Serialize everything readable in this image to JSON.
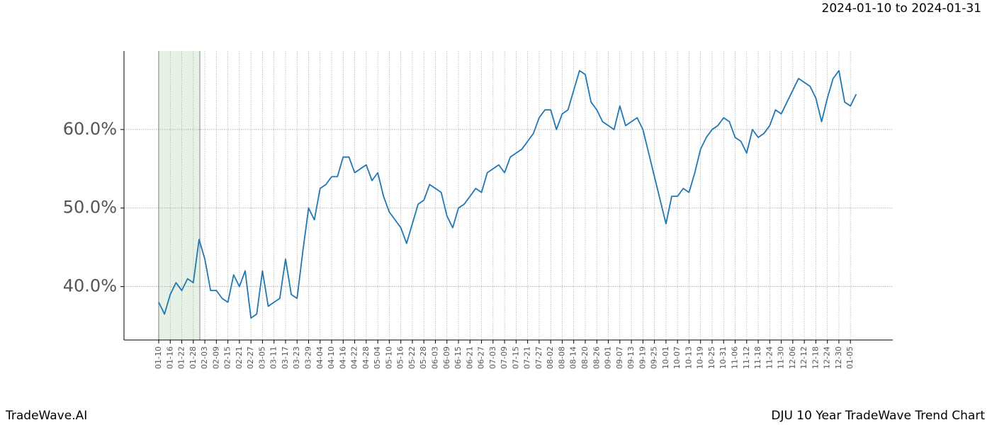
{
  "chart_data": {
    "type": "line",
    "title": "DJU 10 Year TradeWave Trend Chart",
    "subtitle": "2024-01-10 to 2024-01-31",
    "brand": "TradeWave.AI",
    "categories": [
      "01-10",
      null,
      "01-16",
      null,
      "01-22",
      null,
      "01-28",
      null,
      "02-03",
      null,
      "02-09",
      null,
      "02-15",
      null,
      "02-21",
      null,
      "02-27",
      null,
      "03-05",
      null,
      "03-11",
      null,
      "03-17",
      null,
      "03-23",
      null,
      "03-29",
      null,
      "04-04",
      null,
      "04-10",
      null,
      "04-16",
      null,
      "04-22",
      null,
      "04-28",
      null,
      "05-04",
      null,
      "05-10",
      null,
      "05-16",
      null,
      "05-22",
      null,
      "05-28",
      null,
      "06-03",
      null,
      "06-09",
      null,
      "06-15",
      null,
      "06-21",
      null,
      "06-27",
      null,
      "07-03",
      null,
      "07-09",
      null,
      "07-15",
      null,
      "07-21",
      null,
      "07-27",
      null,
      "08-02",
      null,
      "08-08",
      null,
      "08-14",
      null,
      "08-20",
      null,
      "08-26",
      null,
      "09-01",
      null,
      "09-07",
      null,
      "09-13",
      null,
      "09-19",
      null,
      "09-25",
      null,
      "10-01",
      null,
      "10-07",
      null,
      "10-13",
      null,
      "10-19",
      null,
      "10-25",
      null,
      "10-31",
      null,
      "11-06",
      null,
      "11-12",
      null,
      "11-18",
      null,
      "11-24",
      null,
      "11-30",
      null,
      "12-06",
      null,
      "12-12",
      null,
      "12-18",
      null,
      "12-24",
      null,
      "12-30",
      null,
      "01-05",
      null
    ],
    "series": [
      {
        "color": "#1f77b4",
        "values": [
          38.0,
          36.5,
          39.0,
          40.5,
          39.5,
          41.0,
          40.5,
          46.0,
          43.5,
          39.5,
          39.5,
          38.5,
          38.0,
          41.5,
          40.0,
          42.0,
          36.0,
          36.5,
          42.0,
          37.5,
          38.0,
          38.5,
          43.5,
          39.0,
          38.5,
          44.5,
          50.0,
          48.5,
          52.5,
          53.0,
          54.0,
          54.0,
          56.5,
          56.5,
          54.5,
          55.0,
          55.5,
          53.5,
          54.5,
          51.5,
          49.5,
          48.5,
          47.5,
          45.5,
          48.0,
          50.5,
          51.0,
          53.0,
          52.5,
          52.0,
          49.0,
          47.5,
          50.0,
          50.5,
          51.5,
          52.5,
          52.0,
          54.5,
          55.0,
          55.5,
          54.5,
          56.5,
          57.0,
          57.5,
          58.5,
          59.5,
          61.5,
          62.5,
          62.5,
          60.0,
          62.0,
          62.5,
          65.0,
          67.5,
          67.0,
          63.5,
          62.5,
          61.0,
          60.5,
          60.0,
          63.0,
          60.5,
          61.0,
          61.5,
          60.0,
          57.0,
          54.0,
          51.0,
          48.0,
          51.5,
          51.5,
          52.5,
          52.0,
          54.5,
          57.5,
          59.0,
          60.0,
          60.5,
          61.5,
          61.0,
          59.0,
          58.5,
          57.0,
          60.0,
          59.0,
          59.5,
          60.5,
          62.5,
          62.0,
          63.5,
          65.0,
          66.5,
          66.0,
          65.5,
          64.0,
          61.0,
          64.0,
          66.5,
          67.5,
          63.5,
          63.0,
          64.5
        ]
      }
    ],
    "ylim": [
      33.2,
      70
    ],
    "yticks": [
      {
        "value": 40,
        "label": "40.0%"
      },
      {
        "value": 50,
        "label": "50.0%"
      },
      {
        "value": 60,
        "label": "60.0%"
      }
    ],
    "grid": true
  }
}
